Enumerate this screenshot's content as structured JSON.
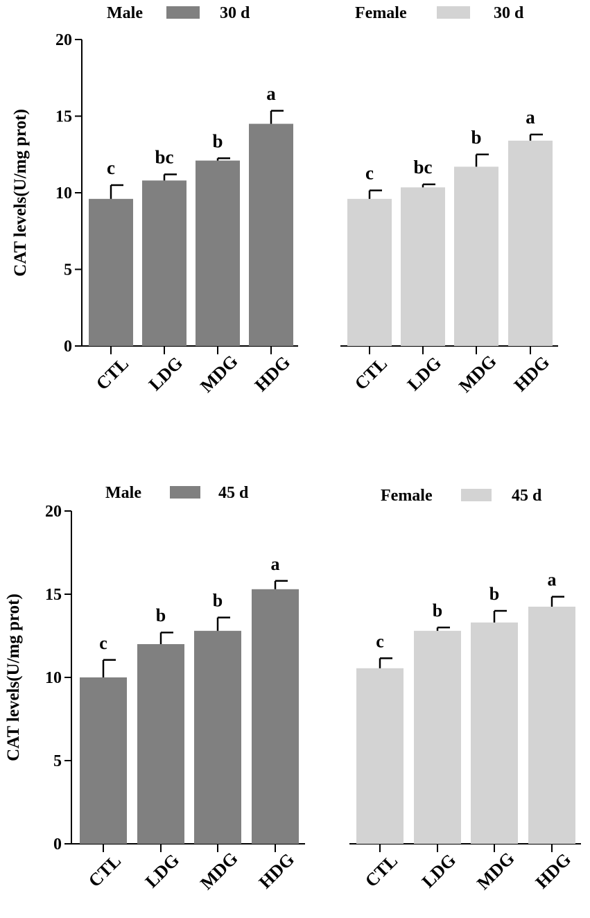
{
  "chart_data": [
    {
      "type": "bar",
      "ylabel": "CAT  levels(U/mg prot)",
      "ylim": [
        0,
        20
      ],
      "yticks": [
        0,
        5,
        10,
        15,
        20
      ],
      "categories": [
        "CTL",
        "LDG",
        "MDG",
        "HDG"
      ],
      "series": [
        {
          "name": "Male",
          "legend_label": "30 d",
          "color": "#808080",
          "values": [
            9.6,
            10.8,
            12.1,
            14.5
          ],
          "errors": [
            0.9,
            0.4,
            0.15,
            0.85
          ],
          "letters": [
            "c",
            "bc",
            "b",
            "a"
          ]
        },
        {
          "name": "Female",
          "legend_label": "30 d",
          "color": "#d3d3d3",
          "values": [
            9.6,
            10.35,
            11.7,
            13.4
          ],
          "errors": [
            0.55,
            0.2,
            0.8,
            0.4
          ],
          "letters": [
            "c",
            "bc",
            "b",
            "a"
          ]
        }
      ]
    },
    {
      "type": "bar",
      "ylabel": "CAT  levels(U/mg prot)",
      "ylim": [
        0,
        20
      ],
      "yticks": [
        0,
        5,
        10,
        15,
        20
      ],
      "categories": [
        "CTL",
        "LDG",
        "MDG",
        "HDG"
      ],
      "series": [
        {
          "name": "Male",
          "legend_label": "45 d",
          "color": "#808080",
          "values": [
            10.0,
            12.0,
            12.8,
            15.3
          ],
          "errors": [
            1.05,
            0.7,
            0.8,
            0.5
          ],
          "letters": [
            "c",
            "b",
            "b",
            "a"
          ]
        },
        {
          "name": "Female",
          "legend_label": "45 d",
          "color": "#d3d3d3",
          "values": [
            10.55,
            12.8,
            13.3,
            14.25
          ],
          "errors": [
            0.6,
            0.2,
            0.7,
            0.6
          ],
          "letters": [
            "c",
            "b",
            "b",
            "a"
          ]
        }
      ]
    }
  ]
}
